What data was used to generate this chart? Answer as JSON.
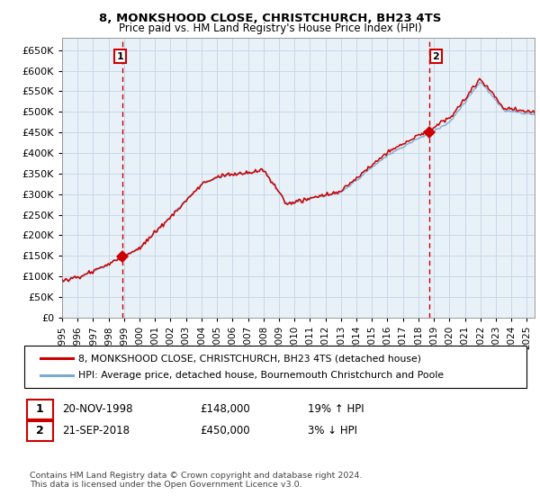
{
  "title": "8, MONKSHOOD CLOSE, CHRISTCHURCH, BH23 4TS",
  "subtitle": "Price paid vs. HM Land Registry's House Price Index (HPI)",
  "legend_line1": "8, MONKSHOOD CLOSE, CHRISTCHURCH, BH23 4TS (detached house)",
  "legend_line2": "HPI: Average price, detached house, Bournemouth Christchurch and Poole",
  "footer": "Contains HM Land Registry data © Crown copyright and database right 2024.\nThis data is licensed under the Open Government Licence v3.0.",
  "sale1_label": "1",
  "sale1_date": "20-NOV-1998",
  "sale1_price": "£148,000",
  "sale1_hpi": "19% ↑ HPI",
  "sale2_label": "2",
  "sale2_date": "21-SEP-2018",
  "sale2_price": "£450,000",
  "sale2_hpi": "3% ↓ HPI",
  "sale1_x": 1998.9,
  "sale1_y": 148000,
  "sale2_x": 2018.72,
  "sale2_y": 450000,
  "hpi_color": "#7aaad0",
  "price_color": "#cc0000",
  "grid_color": "#c8d8e8",
  "plot_bg_color": "#e8f0f8",
  "vline_color": "#cc0000",
  "ylim": [
    0,
    680000
  ],
  "xlim_start": 1995,
  "xlim_end": 2025.5,
  "yticks": [
    0,
    50000,
    100000,
    150000,
    200000,
    250000,
    300000,
    350000,
    400000,
    450000,
    500000,
    550000,
    600000,
    650000
  ],
  "xticks": [
    1995,
    1996,
    1997,
    1998,
    1999,
    2000,
    2001,
    2002,
    2003,
    2004,
    2005,
    2006,
    2007,
    2008,
    2009,
    2010,
    2011,
    2012,
    2013,
    2014,
    2015,
    2016,
    2017,
    2018,
    2019,
    2020,
    2021,
    2022,
    2023,
    2024,
    2025
  ]
}
